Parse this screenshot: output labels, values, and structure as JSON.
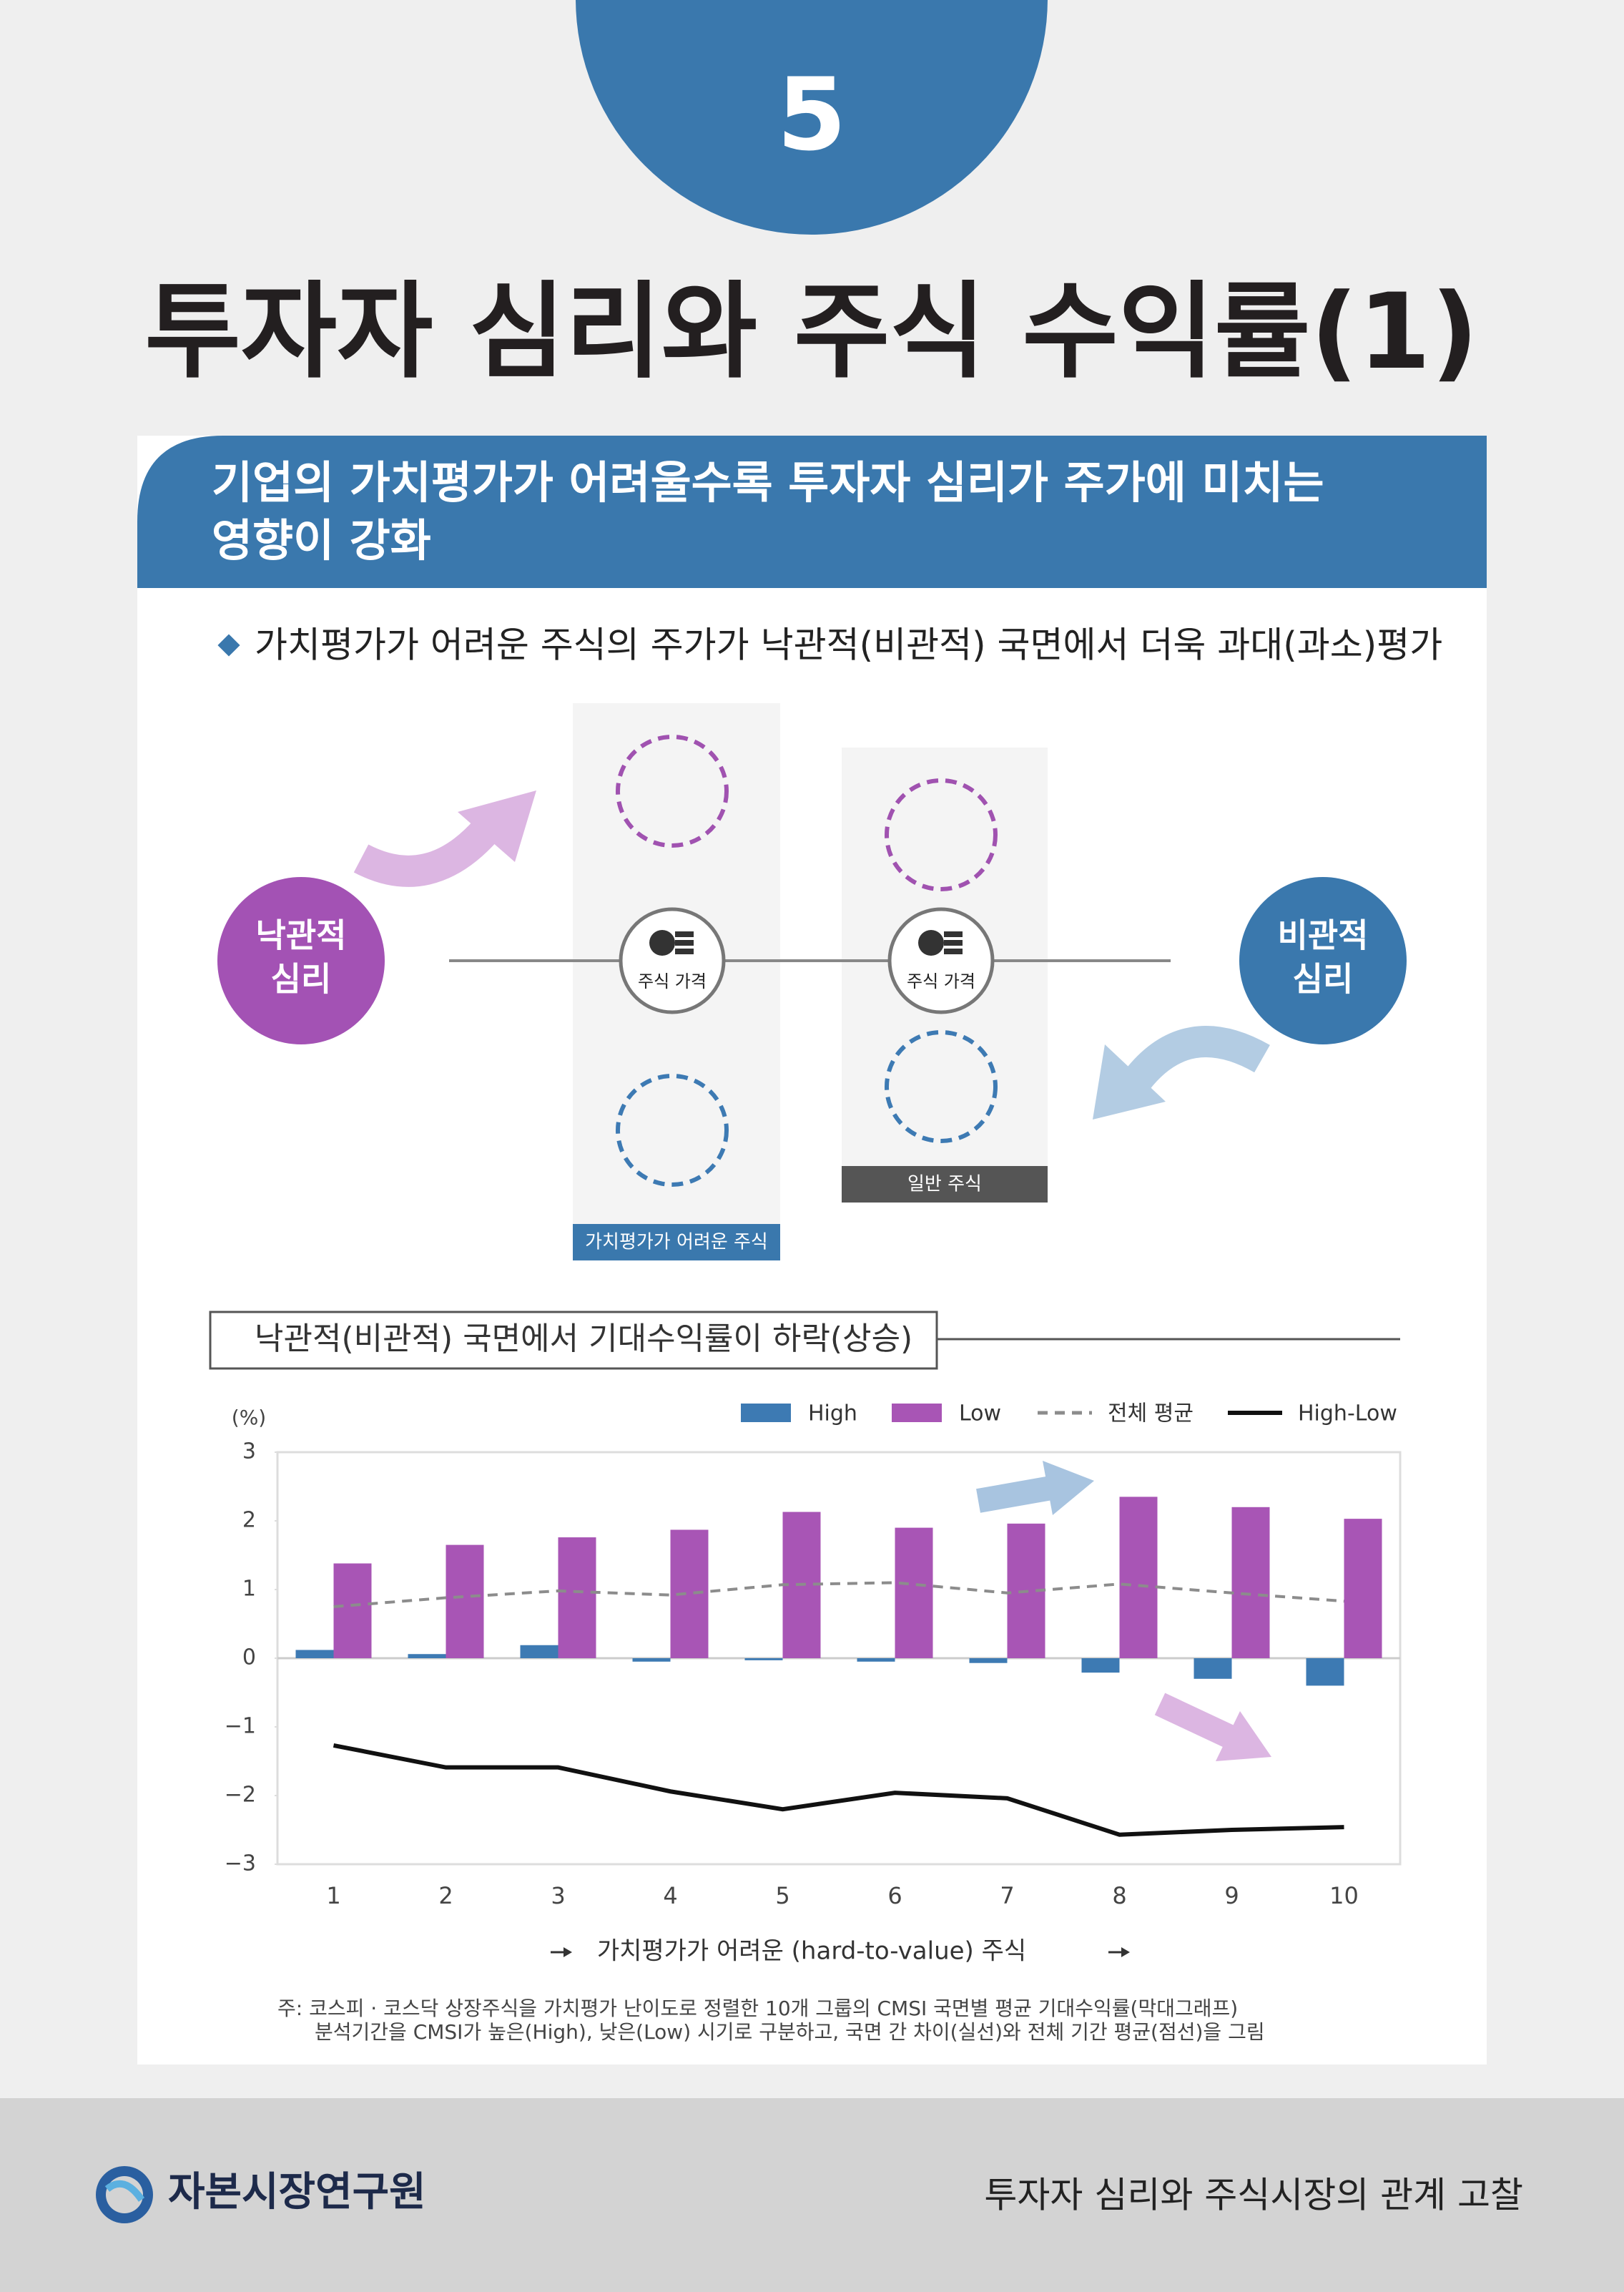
{
  "badge": "5",
  "title": "투자자 심리와 주식 수익률(1)",
  "headline": [
    "기업의 가치평가가 어려울수록 투자자 심리가 주가에 미치는",
    "영향이 강화"
  ],
  "bullet": "가치평가가 어려운 주식의 주가가 낙관적(비관적) 국면에서 더욱 과대(과소)평가",
  "diagram": {
    "optimism": [
      "낙관적",
      "심리"
    ],
    "pessimism": [
      "비관적",
      "심리"
    ],
    "price_label": [
      "주식 가격",
      "주식 가격"
    ],
    "columns": [
      "가치평가가 어려운 주식",
      "일반 주식"
    ]
  },
  "section": "낙관적(비관적) 국면에서 기대수익률이 하락(상승)",
  "chart_data": {
    "type": "bar",
    "y_label": "(%)",
    "x_label": "가치평가가 어려운 (hard-to-value) 주식",
    "categories": [
      "1",
      "2",
      "3",
      "4",
      "5",
      "6",
      "7",
      "8",
      "9",
      "10"
    ],
    "ylim": [
      -3,
      3
    ],
    "yticks": [
      {
        "value": -3,
        "label": "−3"
      },
      {
        "value": -2,
        "label": "−2"
      },
      {
        "value": -1,
        "label": "−1"
      },
      0,
      1,
      2,
      3
    ],
    "series": [
      {
        "name": "High",
        "color": "#3d7ab3",
        "kind": "bar",
        "values": [
          0.12,
          0.06,
          0.19,
          -0.05,
          -0.03,
          -0.05,
          -0.07,
          -0.21,
          -0.3,
          -0.4
        ]
      },
      {
        "name": "Low",
        "color": "#a855b5",
        "kind": "bar",
        "values": [
          1.38,
          1.65,
          1.76,
          1.87,
          2.13,
          1.9,
          1.96,
          2.35,
          2.2,
          2.03
        ]
      },
      {
        "name": "전체 평균",
        "color": "#8c8c8c",
        "kind": "line",
        "dashed": true,
        "values": [
          0.75,
          0.88,
          0.98,
          0.92,
          1.07,
          1.1,
          0.95,
          1.08,
          0.95,
          0.83
        ]
      },
      {
        "name": "High-Low",
        "color": "#111111",
        "kind": "line",
        "dashed": false,
        "values": [
          -1.27,
          -1.59,
          -1.59,
          -1.94,
          -2.2,
          -1.96,
          -2.04,
          -2.57,
          -2.5,
          -2.46
        ]
      }
    ]
  },
  "notes": [
    "주: 코스피 · 코스닥 상장주식을 가치평가 난이도로 정렬한 10개 그룹의 CMSI 국면별 평균 기대수익률(막대그래프)",
    "분석기간을 CMSI가 높은(High), 낮은(Low) 시기로 구분하고, 국면 간 차이(실선)와 전체 기간 평균(점선)을 그림"
  ],
  "footer": {
    "logo": "자본시장연구원",
    "caption": "투자자 심리와 주식시장의 관계 고찰"
  }
}
